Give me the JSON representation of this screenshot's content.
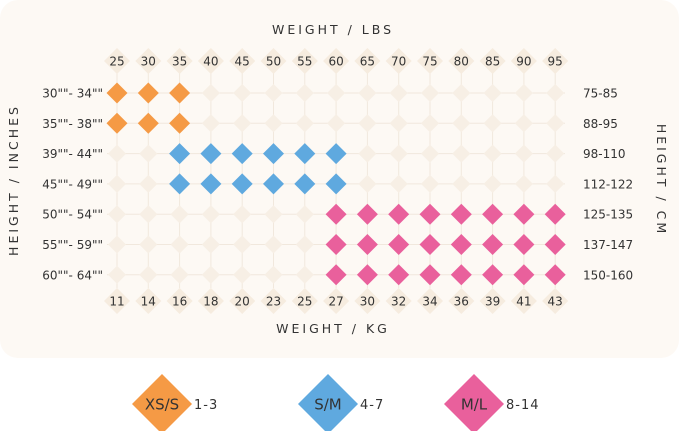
{
  "chart_data": {
    "type": "scatter",
    "title": "",
    "x_label_top": "WEIGHT / LBS",
    "x_label_bottom": "WEIGHT / KG",
    "y_label_left": "HEIGHT / INCHES",
    "y_label_right": "HEIGHT / CM",
    "x_lbs": [
      "25",
      "30",
      "35",
      "40",
      "45",
      "50",
      "55",
      "60",
      "65",
      "70",
      "75",
      "80",
      "85",
      "90",
      "95"
    ],
    "x_kg": [
      "11",
      "14",
      "16",
      "18",
      "20",
      "23",
      "25",
      "27",
      "30",
      "32",
      "34",
      "36",
      "39",
      "41",
      "43"
    ],
    "y_inches": [
      "30\"\"- 34\"\"",
      "35\"\"- 38\"\"",
      "39\"\"- 44\"\"",
      "45\"\"- 49\"\"",
      "50\"\"- 54\"\"",
      "55\"\"- 59\"\"",
      "60\"\"- 64\"\""
    ],
    "y_cm": [
      "75-85",
      "88-95",
      "98-110",
      "112-122",
      "125-135",
      "137-147",
      "150-160"
    ],
    "grid": true,
    "series": [
      {
        "name": "XS/S",
        "color": "#f59a45",
        "rows": [
          0,
          1
        ],
        "cols": [
          0,
          2
        ]
      },
      {
        "name": "S/M",
        "color": "#5fa9df",
        "rows": [
          2,
          3
        ],
        "cols": [
          2,
          7
        ]
      },
      {
        "name": "M/L",
        "color": "#e9609c",
        "rows": [
          4,
          6
        ],
        "cols": [
          7,
          14
        ]
      }
    ],
    "legend": {
      "position": "bottom",
      "items": [
        {
          "label": "XS/S",
          "range": "1-3",
          "color": "#f59a45"
        },
        {
          "label": "S/M",
          "range": "4-7",
          "color": "#5fa9df"
        },
        {
          "label": "M/L",
          "range": "8-14",
          "color": "#e9609c"
        }
      ]
    }
  }
}
